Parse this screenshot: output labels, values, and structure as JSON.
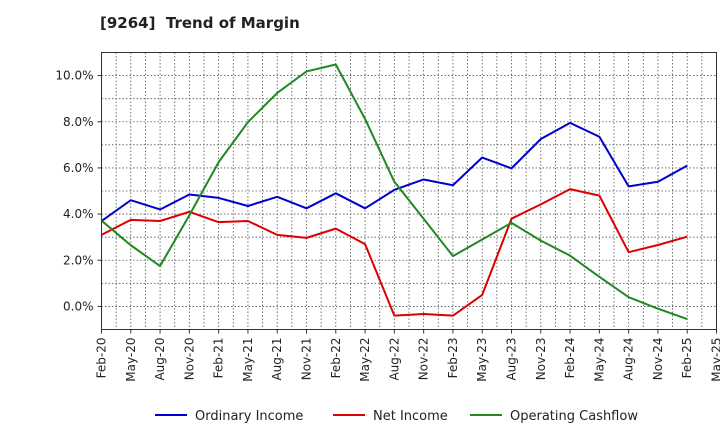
{
  "chart_data": {
    "type": "line",
    "title": "[9264]  Trend of Margin",
    "x": [
      "Feb-20",
      "May-20",
      "Aug-20",
      "Nov-20",
      "Feb-21",
      "May-21",
      "Aug-21",
      "Nov-21",
      "Feb-22",
      "May-22",
      "Aug-22",
      "Nov-22",
      "Feb-23",
      "May-23",
      "Aug-23",
      "Nov-23",
      "Feb-24",
      "May-24",
      "Aug-24",
      "Nov-24",
      "Feb-25",
      "May-25"
    ],
    "yticks": [
      "10.0%",
      "8.0%",
      "6.0%",
      "4.0%",
      "2.0%",
      "0.0%"
    ],
    "ylim": [
      -1.0,
      11.0
    ],
    "grid": true,
    "legend_position": "bottom",
    "series": [
      {
        "name": "Ordinary Income",
        "color": "#0000cc",
        "values": [
          3.7,
          4.6,
          4.2,
          4.85,
          4.7,
          4.35,
          4.75,
          4.25,
          4.9,
          4.25,
          5.05,
          5.5,
          5.25,
          6.45,
          5.98,
          7.25,
          7.95,
          7.35,
          5.2,
          5.4,
          6.1,
          null
        ]
      },
      {
        "name": "Net Income",
        "color": "#dd0000",
        "values": [
          3.1,
          3.75,
          3.7,
          4.1,
          3.65,
          3.7,
          3.1,
          2.97,
          3.37,
          2.7,
          -0.4,
          -0.33,
          -0.4,
          0.5,
          3.8,
          4.42,
          5.08,
          4.8,
          2.35,
          2.66,
          3.02,
          null
        ]
      },
      {
        "name": "Operating Cashflow",
        "color": "#228822",
        "values": [
          3.72,
          2.65,
          1.75,
          3.95,
          6.25,
          7.98,
          9.25,
          10.18,
          10.48,
          8.12,
          5.4,
          3.8,
          2.18,
          2.9,
          3.62,
          2.85,
          2.2,
          1.28,
          0.4,
          -0.1,
          -0.55,
          null
        ]
      }
    ]
  }
}
